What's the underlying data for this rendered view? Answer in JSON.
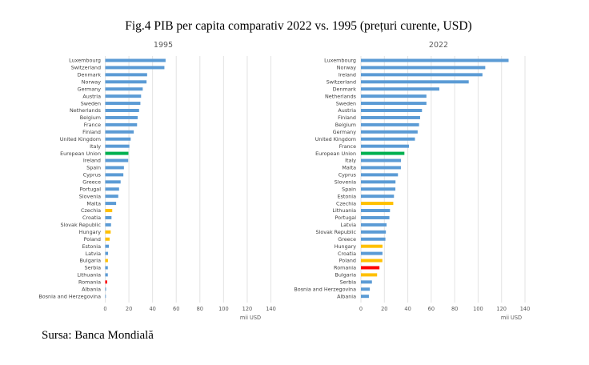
{
  "figure": {
    "title": "Fig.4 PIB per capita comparativ 2022 vs. 1995 (prețuri curente, USD)",
    "source": "Sursa: Banca Mondială"
  },
  "colors": {
    "default": "#5b9bd5",
    "eu": "#00b050",
    "highlight_cee": "#ffc000",
    "romania": "#ff0000"
  },
  "chart_data": [
    {
      "type": "bar",
      "orientation": "horizontal",
      "title": "1995",
      "xlabel": "mii USD",
      "ylabel": "",
      "xlim": [
        0,
        140
      ],
      "xticks": [
        "0",
        "20",
        "40",
        "60",
        "80",
        "100",
        "120",
        "140"
      ],
      "grid": true,
      "categories": [
        "Luxembourg",
        "Switzerland",
        "Denmark",
        "Norway",
        "Germany",
        "Austria",
        "Sweden",
        "Netherlands",
        "Belgium",
        "France",
        "Finland",
        "United Kingdom",
        "Italy",
        "European Union",
        "Ireland",
        "Spain",
        "Cyprus",
        "Greece",
        "Portugal",
        "Slovenia",
        "Malta",
        "Czechia",
        "Croatia",
        "Slovak Republic",
        "Hungary",
        "Poland",
        "Estonia",
        "Latvia",
        "Bulgaria",
        "Serbia",
        "Lithuania",
        "Romania",
        "Albania",
        "Bosnia and Herzegovina"
      ],
      "values": [
        51.0,
        50.0,
        35.4,
        34.9,
        31.7,
        30.3,
        29.7,
        28.6,
        27.4,
        26.9,
        24.1,
        21.5,
        20.4,
        19.6,
        19.4,
        15.8,
        15.3,
        13.0,
        11.7,
        11.0,
        9.2,
        5.9,
        5.3,
        4.9,
        4.6,
        3.7,
        3.1,
        2.4,
        2.3,
        2.2,
        2.2,
        1.6,
        0.7,
        0.5
      ],
      "bar_colors": [
        "default",
        "default",
        "default",
        "default",
        "default",
        "default",
        "default",
        "default",
        "default",
        "default",
        "default",
        "default",
        "default",
        "eu",
        "default",
        "default",
        "default",
        "default",
        "default",
        "default",
        "default",
        "highlight_cee",
        "default",
        "default",
        "highlight_cee",
        "highlight_cee",
        "default",
        "default",
        "highlight_cee",
        "default",
        "default",
        "romania",
        "default",
        "default"
      ]
    },
    {
      "type": "bar",
      "orientation": "horizontal",
      "title": "2022",
      "xlabel": "mii USD",
      "ylabel": "",
      "xlim": [
        0,
        140
      ],
      "xticks": [
        "0",
        "20",
        "40",
        "60",
        "80",
        "100",
        "120",
        "140"
      ],
      "grid": true,
      "categories": [
        "Luxembourg",
        "Norway",
        "Ireland",
        "Switzerland",
        "Denmark",
        "Netherlands",
        "Sweden",
        "Austria",
        "Finland",
        "Belgium",
        "Germany",
        "United Kingdom",
        "France",
        "European Union",
        "Italy",
        "Malta",
        "Cyprus",
        "Slovenia",
        "Spain",
        "Estonia",
        "Czechia",
        "Lithuania",
        "Portugal",
        "Latvia",
        "Slovak Republic",
        "Greece",
        "Hungary",
        "Croatia",
        "Poland",
        "Romania",
        "Bulgaria",
        "Serbia",
        "Bosnia and Herzegovina",
        "Albania"
      ],
      "values": [
        126.0,
        106.1,
        103.7,
        92.0,
        66.9,
        55.9,
        55.9,
        52.1,
        50.5,
        49.6,
        48.4,
        46.1,
        41.0,
        37.1,
        34.2,
        34.1,
        31.6,
        29.5,
        29.4,
        28.2,
        27.6,
        24.8,
        24.3,
        21.9,
        21.3,
        20.9,
        18.4,
        18.4,
        18.3,
        15.8,
        13.8,
        9.4,
        7.6,
        6.8
      ],
      "bar_colors": [
        "default",
        "default",
        "default",
        "default",
        "default",
        "default",
        "default",
        "default",
        "default",
        "default",
        "default",
        "default",
        "default",
        "eu",
        "default",
        "default",
        "default",
        "default",
        "default",
        "default",
        "highlight_cee",
        "default",
        "default",
        "default",
        "default",
        "default",
        "highlight_cee",
        "default",
        "highlight_cee",
        "romania",
        "highlight_cee",
        "default",
        "default",
        "default"
      ]
    }
  ]
}
